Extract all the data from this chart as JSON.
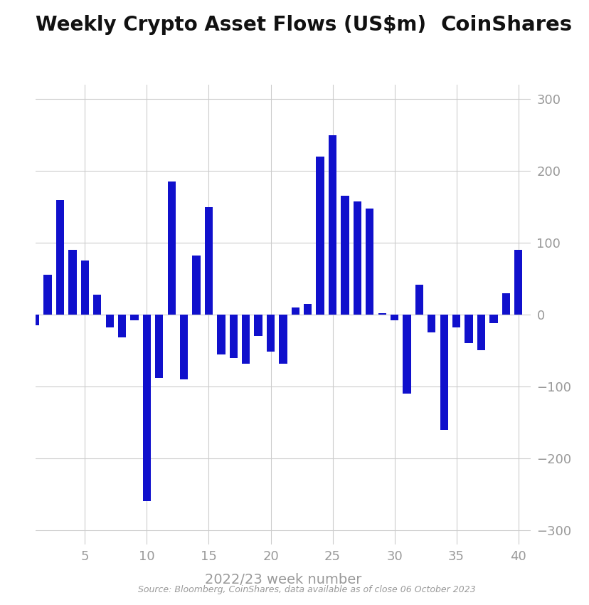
{
  "title": "Weekly Crypto Asset Flows (US$m)",
  "coinshares_label": "CoinShares",
  "xlabel": "2022/23 week number",
  "source_text": "Source: Bloomberg, CoinShares, data available as of close 06 October 2023",
  "bar_color": "#1010cc",
  "background_color": "#ffffff",
  "grid_color": "#cccccc",
  "ylim": [
    -320,
    320
  ],
  "yticks": [
    -300,
    -200,
    -100,
    0,
    100,
    200,
    300
  ],
  "xticks": [
    5,
    10,
    15,
    20,
    25,
    30,
    35,
    40
  ],
  "weeks": [
    1,
    2,
    3,
    4,
    5,
    6,
    7,
    8,
    9,
    10,
    11,
    12,
    13,
    14,
    15,
    16,
    17,
    18,
    19,
    20,
    21,
    22,
    23,
    24,
    25,
    26,
    27,
    28,
    29,
    30,
    31,
    32,
    33,
    34,
    35,
    36,
    37,
    38,
    39,
    40
  ],
  "values": [
    -15,
    55,
    160,
    90,
    75,
    28,
    -18,
    -32,
    -8,
    -260,
    -88,
    185,
    -90,
    82,
    150,
    -55,
    -60,
    -68,
    -30,
    -52,
    -68,
    10,
    15,
    220,
    250,
    165,
    158,
    148,
    2,
    -8,
    -110,
    42,
    -25,
    -160,
    -18,
    -40,
    -50,
    -12,
    30,
    90
  ]
}
